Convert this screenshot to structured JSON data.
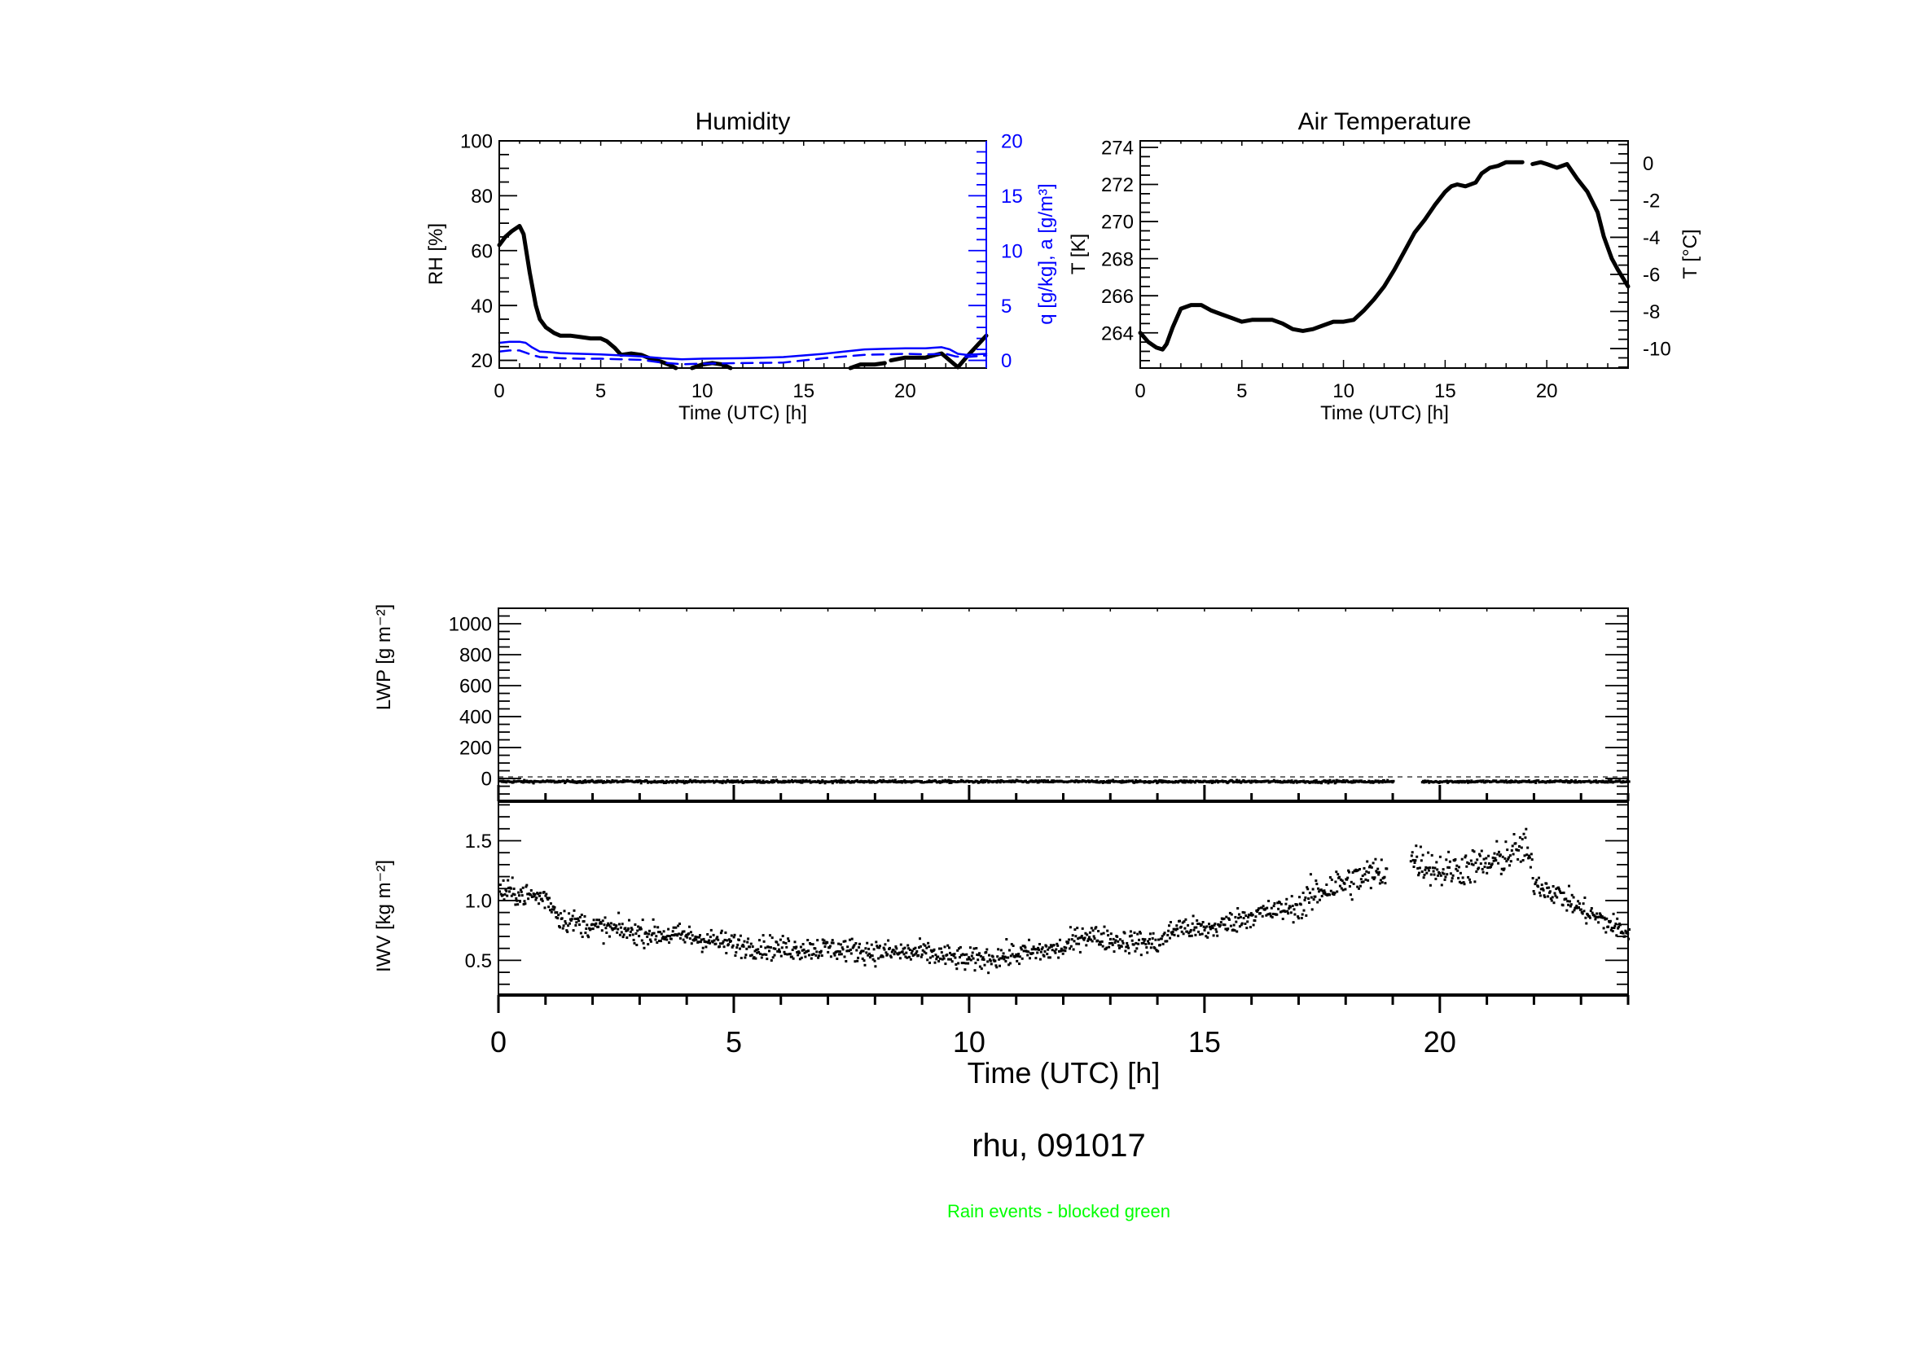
{
  "figure": {
    "title": "rhu, 091017",
    "note": "Rain events - blocked green",
    "colors": {
      "primary": "#000000",
      "secondary_axis": "#0000ff",
      "note": "#00ff00"
    }
  },
  "chart_data": [
    {
      "id": "humidity",
      "type": "line",
      "title": "Humidity",
      "xlabel": "Time (UTC) [h]",
      "ylabel": "RH [%]",
      "y2label": "q [g/kg], a [g/m³]",
      "xlim": [
        0,
        24
      ],
      "ylim": [
        17.2,
        100
      ],
      "y2lim": [
        -0.7,
        20
      ],
      "xticks": [
        0,
        5,
        10,
        15,
        20
      ],
      "xtick_labels": [
        "0",
        "5",
        "10",
        "15",
        "20"
      ],
      "yticks": [
        20,
        40,
        60,
        80,
        100
      ],
      "ytick_labels": [
        "20",
        "40",
        "60",
        "80",
        "100"
      ],
      "y2ticks": [
        0,
        5,
        10,
        15,
        20
      ],
      "y2tick_labels": [
        "0",
        "5",
        "10",
        "15",
        "20"
      ],
      "grid": false,
      "series": [
        {
          "name": "RH",
          "axis": "left",
          "color": "#000000",
          "style": "solid-thick",
          "x": [
            0,
            0.3,
            0.6,
            1.0,
            1.2,
            1.5,
            1.8,
            2.0,
            2.3,
            2.7,
            3.0,
            3.5,
            4.0,
            4.5,
            5.0,
            5.3,
            5.7,
            6.0,
            6.5,
            7.0,
            7.5,
            8.0,
            8.5,
            8.7,
            null,
            9.5,
            10.0,
            10.5,
            11.0,
            11.4,
            null,
            17.3,
            17.8,
            18.5,
            19.0,
            null,
            19.3,
            20.0,
            21.0,
            21.5,
            21.8,
            22.2,
            22.6,
            23.0,
            23.5,
            24.0
          ],
          "y": [
            62,
            65,
            67,
            69,
            66,
            52,
            40,
            35,
            32,
            30,
            29,
            29,
            28.5,
            28,
            28,
            27,
            24.5,
            22,
            22.5,
            22,
            20.5,
            19.5,
            18,
            17.2,
            null,
            17.2,
            18.5,
            19,
            18.5,
            17.2,
            null,
            17.2,
            18.5,
            18.5,
            19,
            null,
            20,
            21,
            21,
            22,
            22.5,
            20,
            17.5,
            21,
            25,
            29
          ]
        },
        {
          "name": "q",
          "axis": "right",
          "color": "#0000ff",
          "style": "solid",
          "x": [
            0,
            0.5,
            1.0,
            1.3,
            1.6,
            2.0,
            2.5,
            3.0,
            4.0,
            5.0,
            6.0,
            7.0,
            8.0,
            9.0,
            10.0,
            12.0,
            13.0,
            14.0,
            15.0,
            16.0,
            17.0,
            18.0,
            19.0,
            20.0,
            21.0,
            21.8,
            22.2,
            22.6,
            23.0,
            24.0
          ],
          "y": [
            1.6,
            1.7,
            1.7,
            1.6,
            1.2,
            0.8,
            0.75,
            0.65,
            0.6,
            0.55,
            0.45,
            0.35,
            0.2,
            0.1,
            0.15,
            0.2,
            0.25,
            0.3,
            0.45,
            0.6,
            0.8,
            1.0,
            1.05,
            1.1,
            1.1,
            1.2,
            1.0,
            0.6,
            0.5,
            0.6
          ]
        },
        {
          "name": "a",
          "axis": "right",
          "color": "#0000ff",
          "style": "dashed",
          "x": [
            0,
            0.5,
            1.0,
            1.3,
            1.6,
            2.0,
            3.0,
            4.0,
            5.0,
            6.0,
            7.0,
            8.0,
            9.0,
            10.0,
            12.0,
            14.0,
            16.0,
            18.0,
            20.0,
            21.0,
            22.0,
            22.5,
            23.0,
            24.0
          ],
          "y": [
            0.8,
            0.9,
            0.9,
            0.7,
            0.5,
            0.3,
            0.2,
            0.15,
            0.15,
            0.1,
            0.05,
            -0.2,
            -0.35,
            -0.3,
            -0.25,
            -0.2,
            0.2,
            0.5,
            0.6,
            0.55,
            0.6,
            0.35,
            0.3,
            0.45
          ]
        }
      ]
    },
    {
      "id": "air-temperature",
      "type": "line",
      "title": "Air Temperature",
      "xlabel": "Time (UTC) [h]",
      "ylabel": "T [K]",
      "y2label": "T [°C]",
      "xlim": [
        0,
        24
      ],
      "ylim": [
        262.1,
        274.35
      ],
      "xticks": [
        0,
        5,
        10,
        15,
        20
      ],
      "xtick_labels": [
        "0",
        "5",
        "10",
        "15",
        "20"
      ],
      "yticks": [
        264,
        266,
        268,
        270,
        272,
        274
      ],
      "ytick_labels": [
        "264",
        "266",
        "268",
        "270",
        "272",
        "274"
      ],
      "y2ticks": [
        -10,
        -8,
        -6,
        -4,
        -2,
        0
      ],
      "y2tick_labels": [
        "-10",
        "-8",
        "-6",
        "-4",
        "-2",
        "0"
      ],
      "grid": false,
      "series": [
        {
          "name": "T",
          "color": "#000000",
          "style": "solid-thick",
          "x": [
            0,
            0.4,
            0.8,
            1.1,
            1.3,
            1.6,
            2.0,
            2.5,
            3.0,
            3.5,
            4.0,
            4.5,
            5.0,
            5.5,
            6.0,
            6.5,
            7.0,
            7.5,
            8.0,
            8.5,
            9.0,
            9.5,
            10.0,
            10.5,
            11.0,
            11.5,
            12.0,
            12.5,
            13.0,
            13.5,
            14.0,
            14.5,
            15.0,
            15.3,
            15.6,
            16.0,
            16.5,
            16.8,
            17.2,
            17.6,
            18.0,
            18.5,
            18.8,
            null,
            19.3,
            19.7,
            20.0,
            20.5,
            21.0,
            21.5,
            22.0,
            22.5,
            22.8,
            23.2,
            23.5,
            24.0
          ],
          "y": [
            264.0,
            263.5,
            263.2,
            263.1,
            263.4,
            264.3,
            265.3,
            265.5,
            265.5,
            265.2,
            265.0,
            264.8,
            264.6,
            264.7,
            264.7,
            264.7,
            264.5,
            264.2,
            264.1,
            264.2,
            264.4,
            264.6,
            264.6,
            264.7,
            265.2,
            265.8,
            266.5,
            267.4,
            268.4,
            269.4,
            270.1,
            270.9,
            271.6,
            271.9,
            272.0,
            271.9,
            272.1,
            272.6,
            272.9,
            273.0,
            273.2,
            273.2,
            273.2,
            null,
            273.1,
            273.2,
            273.1,
            272.9,
            273.1,
            272.3,
            271.6,
            270.5,
            269.2,
            268.0,
            267.4,
            266.5
          ]
        }
      ]
    },
    {
      "id": "lwp",
      "type": "scatter",
      "ylabel": "LWP [g m⁻²]",
      "xlim": [
        0,
        24
      ],
      "ylim": [
        -147,
        1100
      ],
      "yticks": [
        0,
        200,
        400,
        600,
        800,
        1000
      ],
      "ytick_labels": [
        "0",
        "200",
        "400",
        "600",
        "800",
        "1000"
      ],
      "reference_line": {
        "y": 0,
        "style": "dashed"
      },
      "gap": [
        19.0,
        19.6
      ],
      "description": "values near -20 g m⁻² throughout the day with a data gap around 19 h"
    },
    {
      "id": "iwv",
      "type": "scatter",
      "xlabel": "Time (UTC) [h]",
      "ylabel": "IWV [kg m⁻²]",
      "xlim": [
        0,
        24
      ],
      "ylim": [
        0.21,
        1.83
      ],
      "xticks": [
        0,
        5,
        10,
        15,
        20
      ],
      "xtick_labels": [
        "0",
        "5",
        "10",
        "15",
        "20"
      ],
      "yticks": [
        0.5,
        1.0,
        1.5
      ],
      "ytick_labels": [
        "0.5",
        "1.0",
        "1.5"
      ],
      "gap": [
        18.85,
        19.35
      ],
      "trend": {
        "x": [
          0,
          0.5,
          1.0,
          1.3,
          2,
          3,
          4,
          5,
          6,
          7,
          8,
          9,
          10,
          11,
          12,
          12.4,
          13,
          14,
          14.4,
          15,
          16,
          17,
          17.5,
          18,
          18.8,
          19.4,
          20,
          21,
          21.8,
          22,
          22.5,
          23,
          23.5,
          24
        ],
        "y": [
          1.08,
          1.05,
          1.02,
          0.85,
          0.78,
          0.73,
          0.7,
          0.63,
          0.6,
          0.6,
          0.57,
          0.56,
          0.5,
          0.55,
          0.6,
          0.72,
          0.67,
          0.64,
          0.78,
          0.75,
          0.88,
          0.95,
          1.1,
          1.15,
          1.25,
          1.35,
          1.25,
          1.3,
          1.45,
          1.15,
          1.05,
          0.92,
          0.82,
          0.72
        ]
      },
      "scatter_spread": 0.07
    }
  ]
}
